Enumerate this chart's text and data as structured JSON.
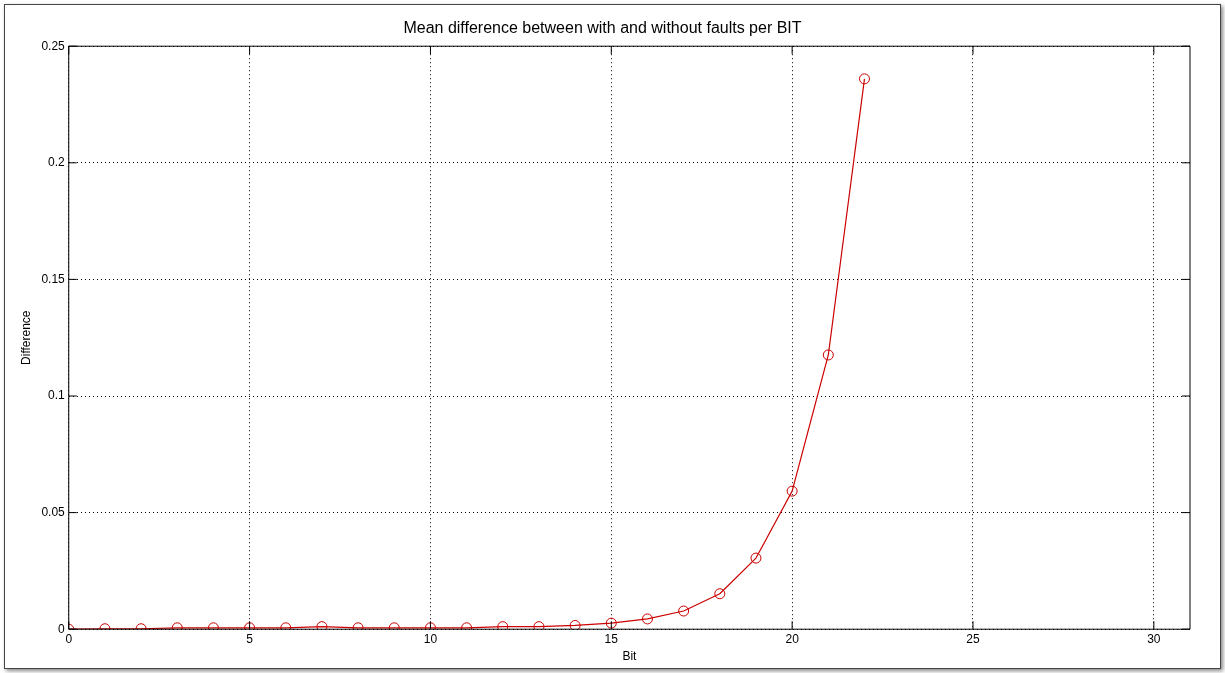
{
  "chart_data": {
    "type": "line",
    "title": "Mean difference between with and without faults per BIT",
    "xlabel": "Bit",
    "ylabel": "Difference",
    "x": [
      0,
      1,
      2,
      3,
      4,
      5,
      6,
      7,
      8,
      9,
      10,
      11,
      12,
      13,
      14,
      15,
      16,
      17,
      18,
      19,
      20,
      21,
      22
    ],
    "series": [
      {
        "color": "#cc0000",
        "values": [
          0,
          0.0002,
          0.0002,
          0.0006,
          0.0006,
          0.0006,
          0.0006,
          0.0011,
          0.0006,
          0.0006,
          0.0006,
          0.0006,
          0.0011,
          0.0011,
          0.0016,
          0.0026,
          0.0044,
          0.0078,
          0.0152,
          0.0305,
          0.0592,
          0.1176,
          0.236
        ]
      }
    ],
    "xlim": [
      0,
      31
    ],
    "xticks": [
      0,
      5,
      10,
      15,
      20,
      25,
      30
    ],
    "ylim": [
      0,
      0.25
    ],
    "yticks": [
      0,
      0.05,
      0.1,
      0.15,
      0.2,
      0.25
    ],
    "grid": true,
    "legend": false,
    "marker": "circle",
    "line_style": "solid"
  }
}
